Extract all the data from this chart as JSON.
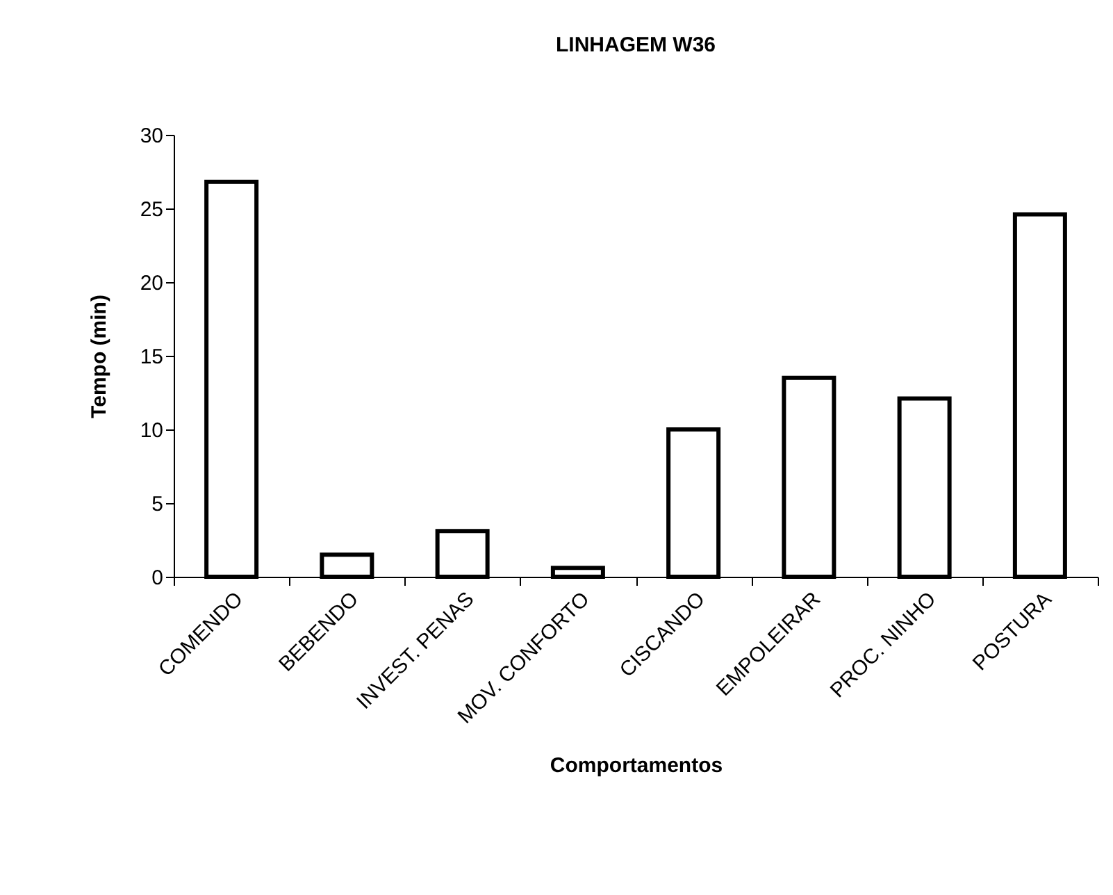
{
  "chart_data": {
    "type": "bar",
    "title": "LINHAGEM W36",
    "xlabel": "Comportamentos",
    "ylabel": "Tempo (min)",
    "categories": [
      "COMENDO",
      "BEBENDO",
      "INVEST. PENAS",
      "MOV. CONFORTO",
      "CISCANDO",
      "EMPOLEIRAR",
      "PROC. NINHO",
      "POSTURA"
    ],
    "values": [
      26.8,
      1.5,
      3.1,
      0.6,
      10.0,
      13.5,
      12.1,
      24.6
    ],
    "color": "#ffffff",
    "ylim": [
      0,
      30
    ],
    "yticks": [
      0,
      5,
      10,
      15,
      20,
      25,
      30
    ],
    "grid": false
  }
}
